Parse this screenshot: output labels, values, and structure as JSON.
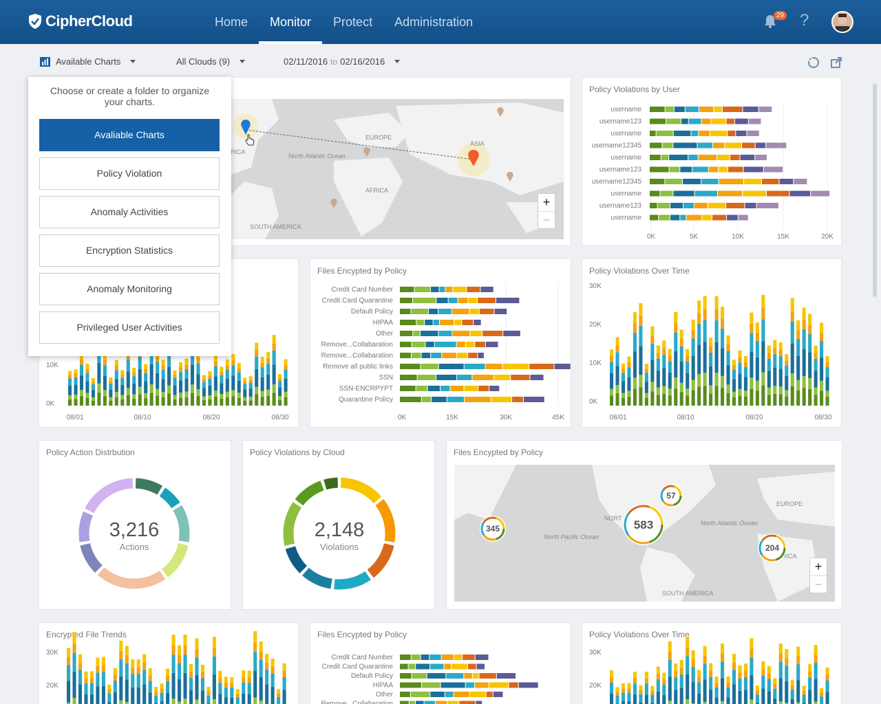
{
  "brand": {
    "name": "CipherCloud"
  },
  "nav": {
    "items": [
      "Home",
      "Monitor",
      "Protect",
      "Administration"
    ],
    "active": "Monitor"
  },
  "header": {
    "notification_count": "29",
    "help": "?"
  },
  "toolbar": {
    "charts": "Available Charts",
    "clouds": "All Clouds (9)",
    "date_from": "02/11/2016",
    "date_to": "to",
    "date_until": "02/16/2016"
  },
  "dropdown": {
    "title": "Choose or create a folder to organize your charts.",
    "items": [
      "Avaliable Charts",
      "Policy Violation",
      "Anomaly Activities",
      "Encryption Statistics",
      "Anomaly Monitoring",
      "Privileged User Activities"
    ]
  },
  "cards": {
    "violations_by_user": {
      "title": "Policy Violations by User",
      "users": [
        "username",
        "username123",
        "username",
        "username12345",
        "username",
        "username123",
        "username12345",
        "username",
        "username123",
        "username"
      ],
      "ticks": [
        "0K",
        "5K",
        "10K",
        "15K",
        "20K"
      ]
    },
    "left_bar": {
      "yticks": [
        "10K",
        "0K"
      ],
      "xticks": [
        "08/01",
        "08/10",
        "08/20",
        "08/30"
      ]
    },
    "files_by_policy": {
      "title": "Files Encypted by Policy",
      "policies": [
        "Credit Card Number",
        "Credit Card Quarantine",
        "Default Policy",
        "HIPAA",
        "Other",
        "Remove...Collabaration",
        "Remove...Collabaration",
        "Remove all public links",
        "SSN",
        "SSN-ENCRPYPT",
        "Quarantine Policy"
      ],
      "ticks": [
        "0K",
        "15K",
        "30K",
        "45K"
      ]
    },
    "violations_over_time": {
      "title": "Policy Violations Over Time",
      "yticks": [
        "30K",
        "20K",
        "10K",
        "0K"
      ],
      "xticks": [
        "08/01",
        "08/10",
        "08/20",
        "08/30"
      ]
    },
    "action_distribution": {
      "title": "Policy Action Distrbution",
      "value": "3,216",
      "label": "Actions"
    },
    "violations_by_cloud": {
      "title": "Policy Violations by Cloud",
      "value": "2,148",
      "label": "Violations"
    },
    "files_map": {
      "title": "Files Encypted by Policy",
      "markers": [
        "345",
        "583",
        "57",
        "204"
      ],
      "labels": [
        "NORT",
        "North Pacific Ocean",
        "North Atlantic Ocean",
        "EUROPE",
        "RICA",
        "SOUTH AMERICA"
      ]
    },
    "top_map": {
      "labels": [
        "EUROPE",
        "ASIA",
        "AFRICA",
        "RICA",
        "North Atlantic Ocean",
        "SOUTH AMERICA"
      ]
    },
    "encrypted_trends": {
      "title": "Encrypted File Trends",
      "yticks": [
        "30K",
        "20K"
      ]
    },
    "files_by_policy_2": {
      "title": "Files Encypted by Policy",
      "policies": [
        "Credit Card Number",
        "Credit Card Quarantine",
        "Default Policy",
        "HIPAA",
        "Other",
        "Remove...Collabaration"
      ]
    },
    "violations_over_time_2": {
      "title": "Policy Violations Over Time",
      "yticks": [
        "30K",
        "20K"
      ]
    }
  },
  "colors": {
    "c1": "#5a8a1e",
    "c2": "#8fbf3f",
    "c3": "#1b6f9a",
    "c4": "#2aa9c8",
    "c5": "#f5a20f",
    "c6": "#f7c600",
    "c7": "#d8691a",
    "c8": "#5b5b96",
    "c9": "#a48ab3"
  }
}
